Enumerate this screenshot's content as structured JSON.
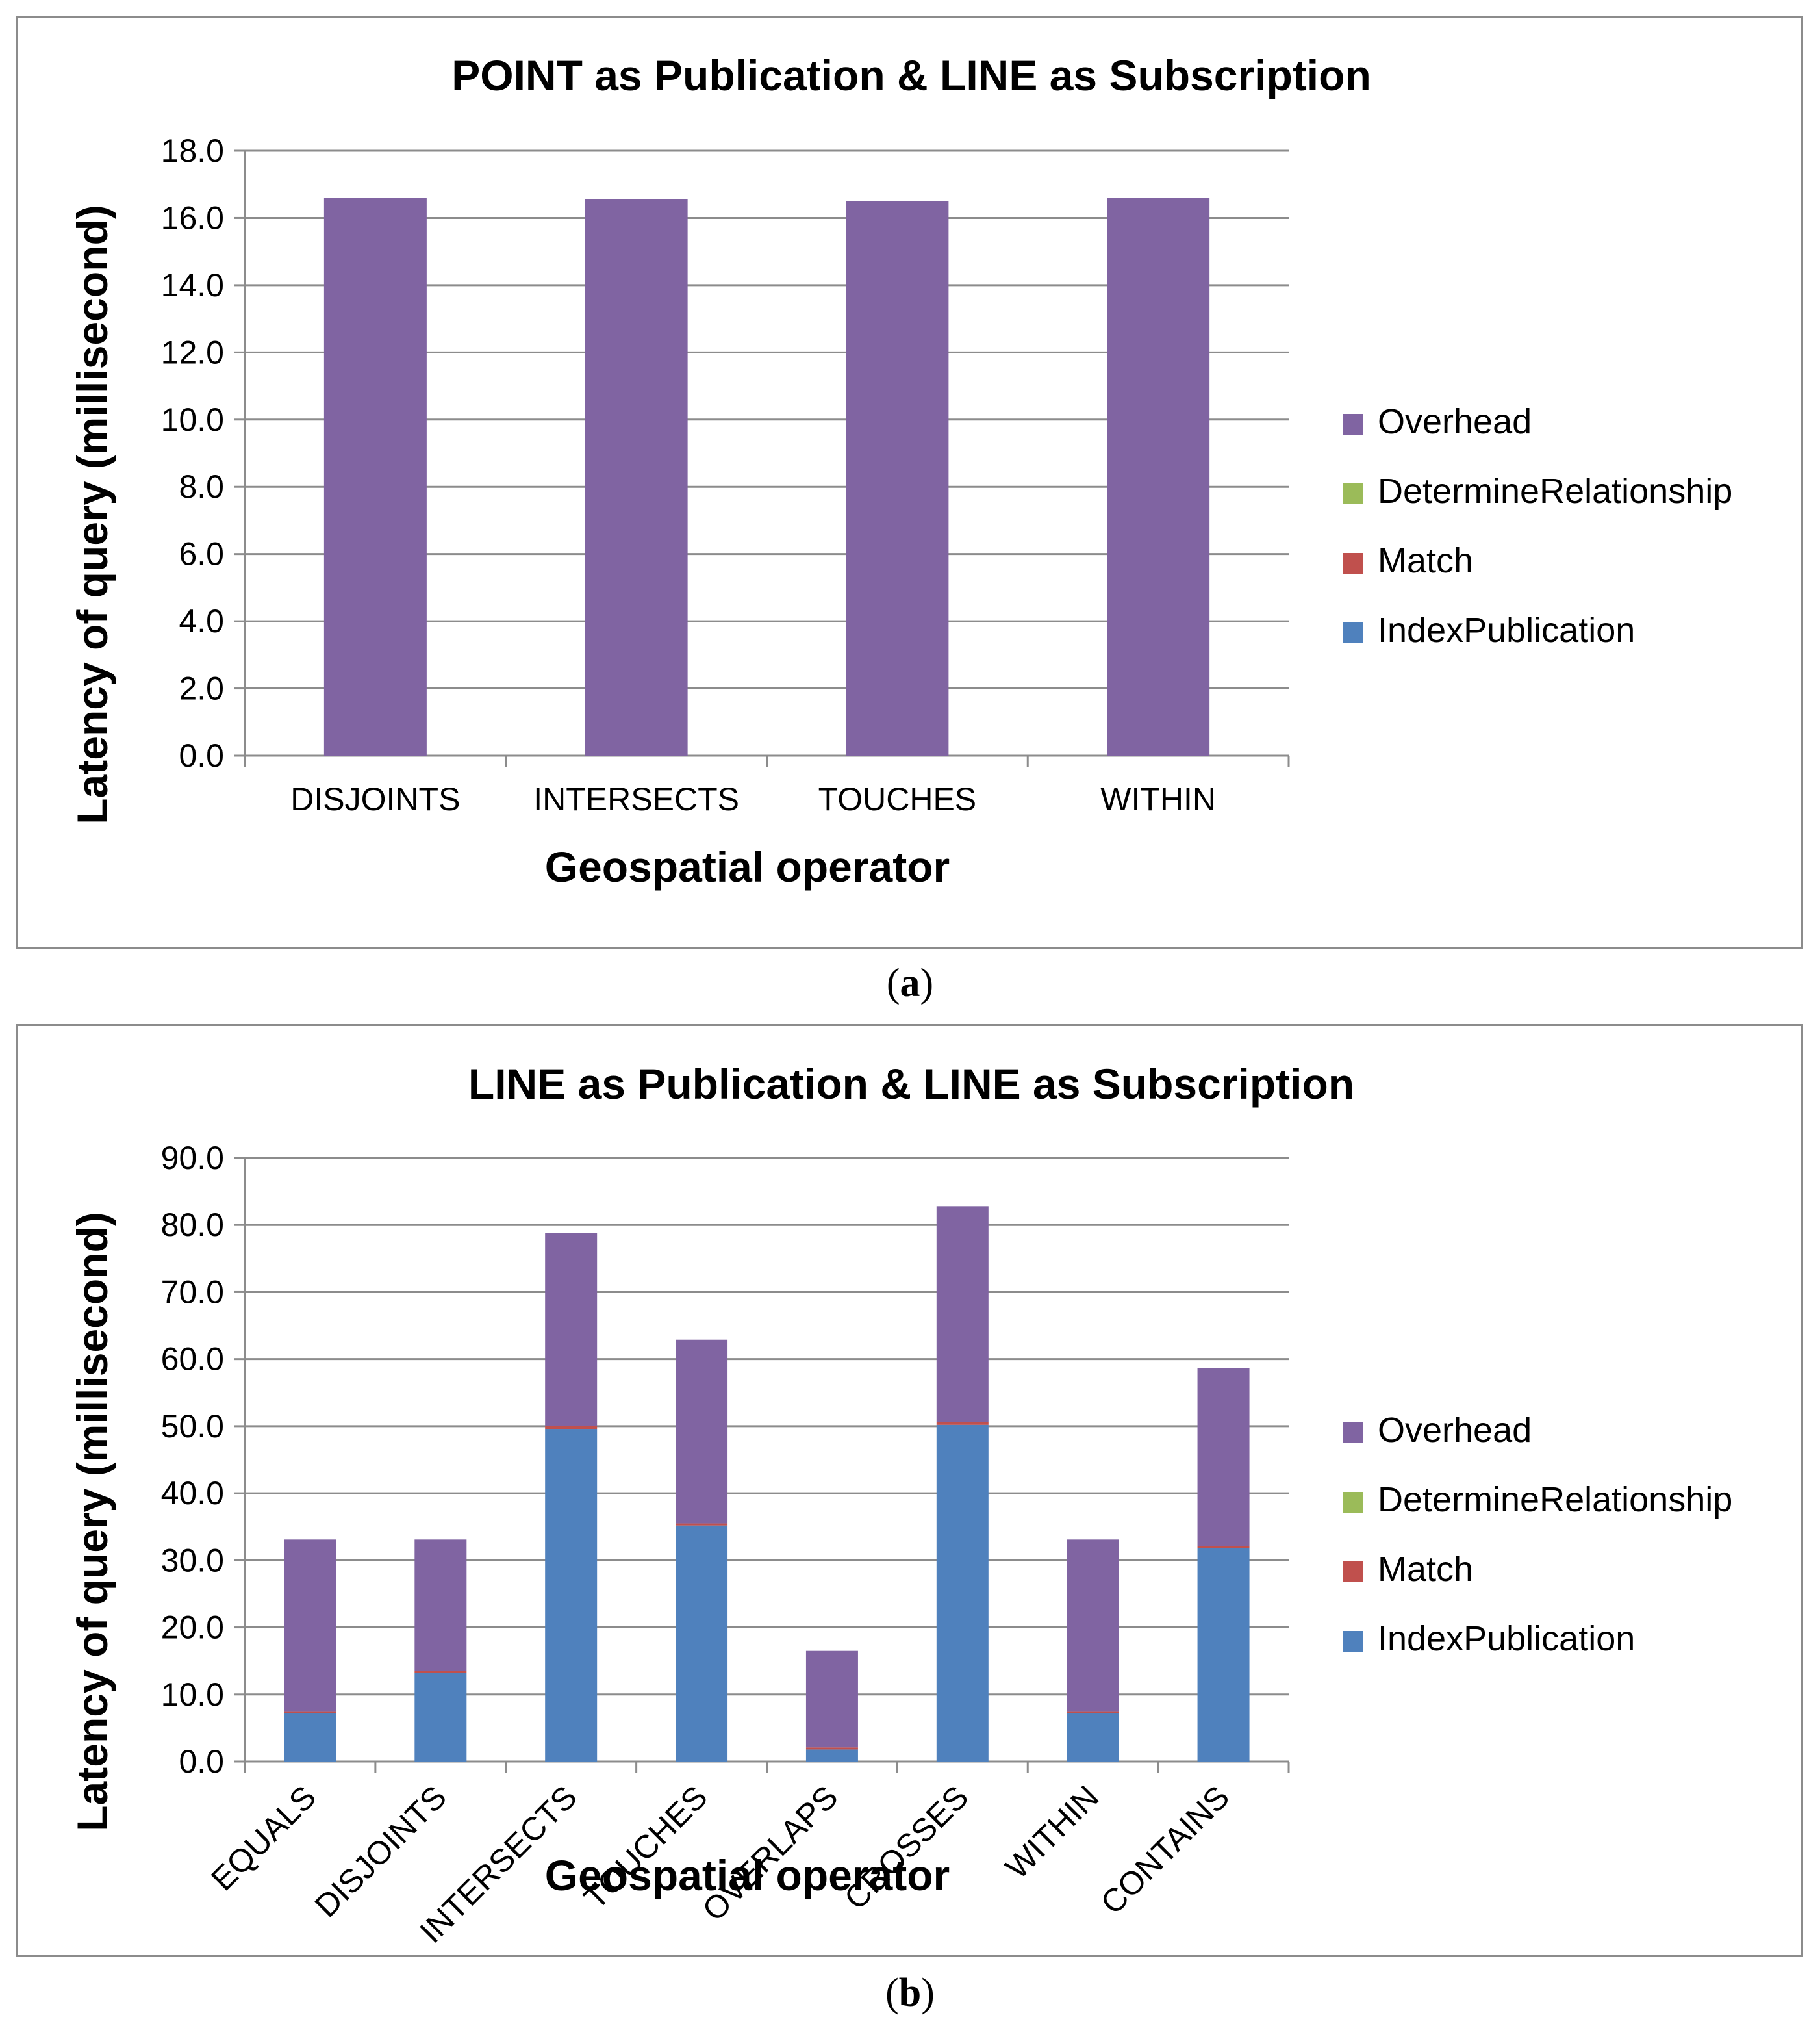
{
  "chart_data": [
    {
      "type": "bar",
      "stacked": true,
      "title": "POINT as Publication & LINE as Subscription",
      "xlabel": "Geospatial operator",
      "ylabel": "Latency of query (millisecond)",
      "ylim": [
        0,
        18
      ],
      "yticks": [
        "0.0",
        "2.0",
        "4.0",
        "6.0",
        "8.0",
        "10.0",
        "12.0",
        "14.0",
        "16.0",
        "18.0"
      ],
      "categories": [
        "DISJOINTS",
        "INTERSECTS",
        "TOUCHES",
        "WITHIN"
      ],
      "series": [
        {
          "name": "IndexPublication",
          "color": "#4f81bd",
          "values": [
            0,
            0,
            0,
            0
          ]
        },
        {
          "name": "Match",
          "color": "#c0504d",
          "values": [
            0,
            0,
            0,
            0
          ]
        },
        {
          "name": "DetermineRelationship",
          "color": "#9bbb59",
          "values": [
            0,
            0,
            0,
            0
          ]
        },
        {
          "name": "Overhead",
          "color": "#8064a2",
          "values": [
            16.6,
            16.55,
            16.5,
            16.6
          ]
        }
      ],
      "legend": [
        "Overhead",
        "DetermineRelationship",
        "Match",
        "IndexPublication"
      ],
      "legend_position": "right",
      "caption": "a"
    },
    {
      "type": "bar",
      "stacked": true,
      "title": "LINE as Publication & LINE as Subscription",
      "xlabel": "Geospatial operator",
      "ylabel": "Latency of query (millisecond)",
      "ylim": [
        0,
        90
      ],
      "yticks": [
        "0.0",
        "10.0",
        "20.0",
        "30.0",
        "40.0",
        "50.0",
        "60.0",
        "70.0",
        "80.0",
        "90.0"
      ],
      "categories": [
        "EQUALS",
        "DISJOINTS",
        "INTERSECTS",
        "TOUCHES",
        "OVERLAPS",
        "CROSSES",
        "WITHIN",
        "CONTAINS"
      ],
      "series": [
        {
          "name": "IndexPublication",
          "color": "#4f81bd",
          "values": [
            7.2,
            13.2,
            49.6,
            35.2,
            1.8,
            50.2,
            7.2,
            31.8
          ]
        },
        {
          "name": "Match",
          "color": "#c0504d",
          "values": [
            0.3,
            0.3,
            0.4,
            0.3,
            0.3,
            0.4,
            0.3,
            0.3
          ]
        },
        {
          "name": "DetermineRelationship",
          "color": "#9bbb59",
          "values": [
            0,
            0,
            0,
            0,
            0,
            0,
            0,
            0
          ]
        },
        {
          "name": "Overhead",
          "color": "#8064a2",
          "values": [
            25.6,
            19.6,
            28.8,
            27.4,
            14.4,
            32.2,
            25.6,
            26.6
          ]
        }
      ],
      "legend": [
        "Overhead",
        "DetermineRelationship",
        "Match",
        "IndexPublication"
      ],
      "legend_position": "right",
      "caption": "b"
    }
  ]
}
